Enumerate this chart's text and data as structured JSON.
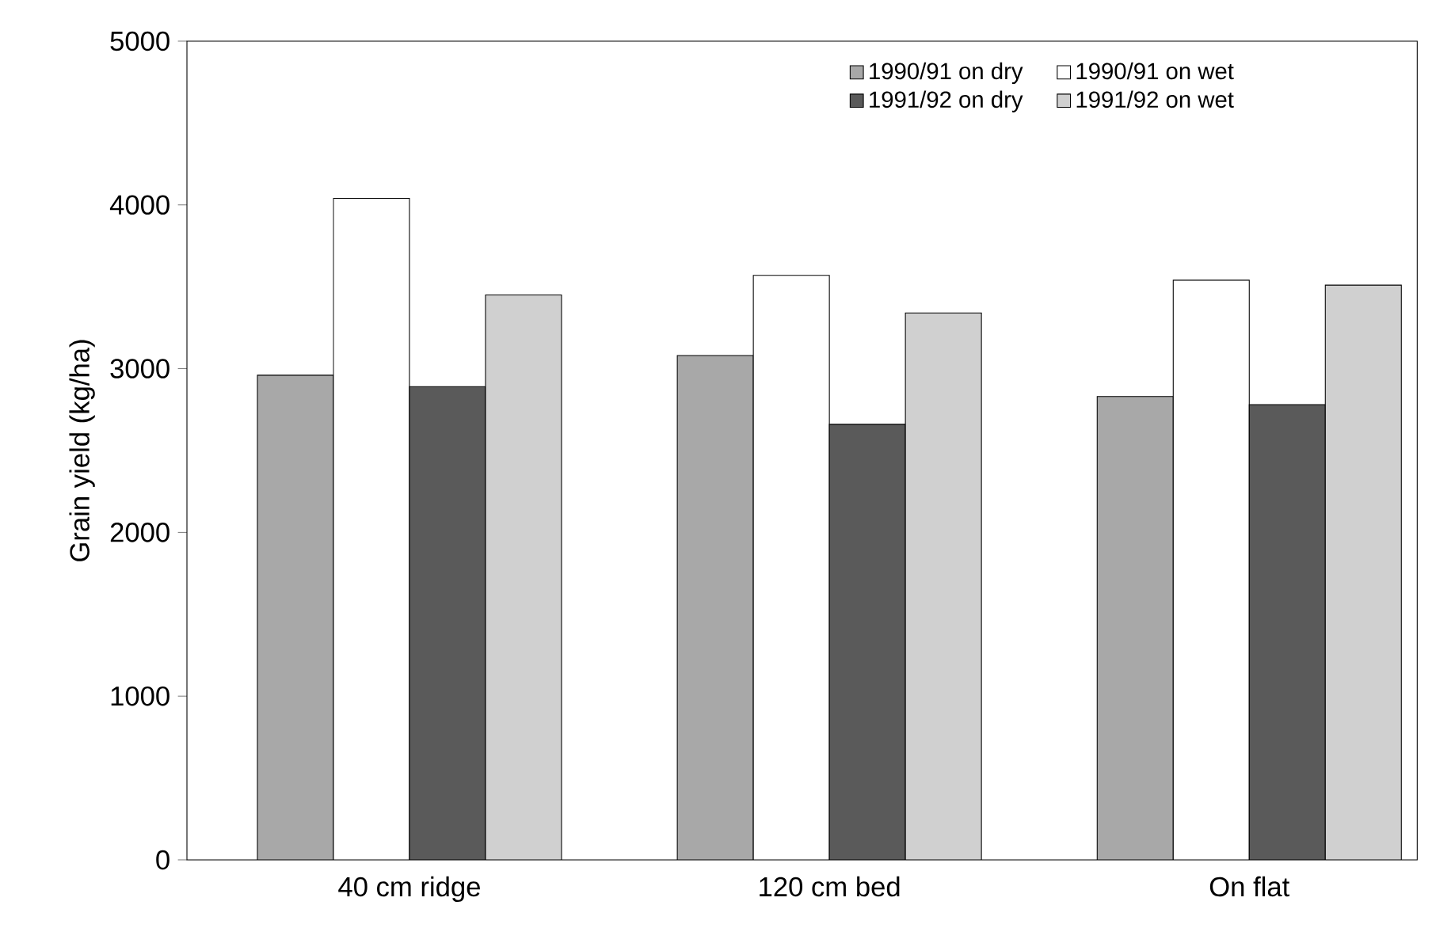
{
  "chart_data": {
    "type": "bar",
    "ylabel": "Grain yield (kg/ha)",
    "categories": [
      "40 cm ridge",
      "120 cm bed",
      "On flat"
    ],
    "series": [
      {
        "name": "1990/91 on dry",
        "color": "#a8a8a8",
        "values": [
          2960,
          3080,
          2830
        ]
      },
      {
        "name": "1990/91 on wet",
        "color": "#ffffff",
        "values": [
          4040,
          3570,
          3540
        ]
      },
      {
        "name": "1991/92 on dry",
        "color": "#5a5a5a",
        "values": [
          2890,
          2660,
          2780
        ]
      },
      {
        "name": "1991/92 on wet",
        "color": "#d0d0d0",
        "values": [
          3450,
          3340,
          3510
        ]
      }
    ],
    "ylim": [
      0,
      5000
    ],
    "yticks": [
      0,
      1000,
      2000,
      3000,
      4000,
      5000
    ],
    "legend": "top right"
  }
}
